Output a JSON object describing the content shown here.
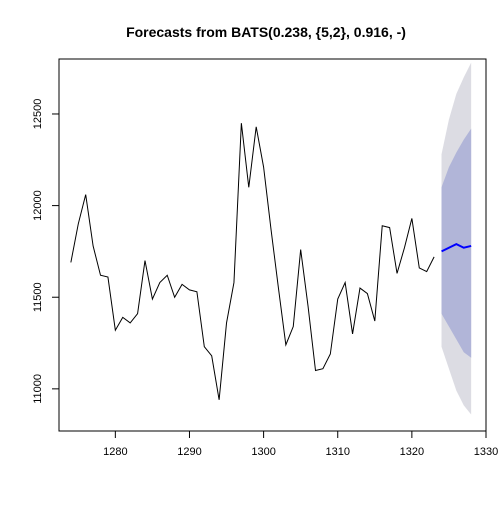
{
  "chart_data": {
    "type": "line",
    "title": "Forecasts from BATS(0.238, {5,2}, 0.916, -)",
    "xlabel": "",
    "ylabel": "",
    "xlim": [
      1272.4,
      1330.0
    ],
    "ylim": [
      10770,
      12800
    ],
    "x_ticks": [
      1280,
      1290,
      1300,
      1310,
      1320,
      1330
    ],
    "y_ticks": [
      11000,
      11500,
      12000,
      12500
    ],
    "grid": false,
    "colors": {
      "history": "#000000",
      "forecast": "#0000ff",
      "band_80": "#b1b5d8",
      "band_95": "#dcdce3"
    },
    "history": {
      "x": [
        1274,
        1275,
        1276,
        1277,
        1278,
        1279,
        1280,
        1281,
        1282,
        1283,
        1284,
        1285,
        1286,
        1287,
        1288,
        1289,
        1290,
        1291,
        1292,
        1293,
        1294,
        1295,
        1296,
        1297,
        1298,
        1299,
        1300,
        1301,
        1302,
        1303,
        1304,
        1305,
        1306,
        1307,
        1308,
        1309,
        1310,
        1311,
        1312,
        1313,
        1314,
        1315,
        1316,
        1317,
        1318,
        1319,
        1320,
        1321,
        1322,
        1323
      ],
      "y": [
        11690,
        11900,
        12060,
        11780,
        11620,
        11610,
        11320,
        11390,
        11360,
        11410,
        11700,
        11490,
        11580,
        11620,
        11500,
        11570,
        11540,
        11530,
        11230,
        11180,
        10940,
        11360,
        11580,
        12450,
        12100,
        12430,
        12210,
        11870,
        11550,
        11240,
        11340,
        11760,
        11450,
        11100,
        11110,
        11190,
        11490,
        11580,
        11300,
        11550,
        11520,
        11370,
        11890,
        11880,
        11630,
        11770,
        11930,
        11660,
        11640,
        11720
      ]
    },
    "forecast": {
      "x": [
        1324,
        1325,
        1326,
        1327,
        1328
      ],
      "mean": [
        11750,
        11770,
        11790,
        11770,
        11780
      ],
      "lo80": [
        11410,
        11340,
        11270,
        11200,
        11170
      ],
      "hi80": [
        12100,
        12210,
        12290,
        12360,
        12420
      ],
      "lo95": [
        11230,
        11110,
        10990,
        10910,
        10860
      ],
      "hi95": [
        12280,
        12470,
        12610,
        12700,
        12780
      ]
    }
  }
}
